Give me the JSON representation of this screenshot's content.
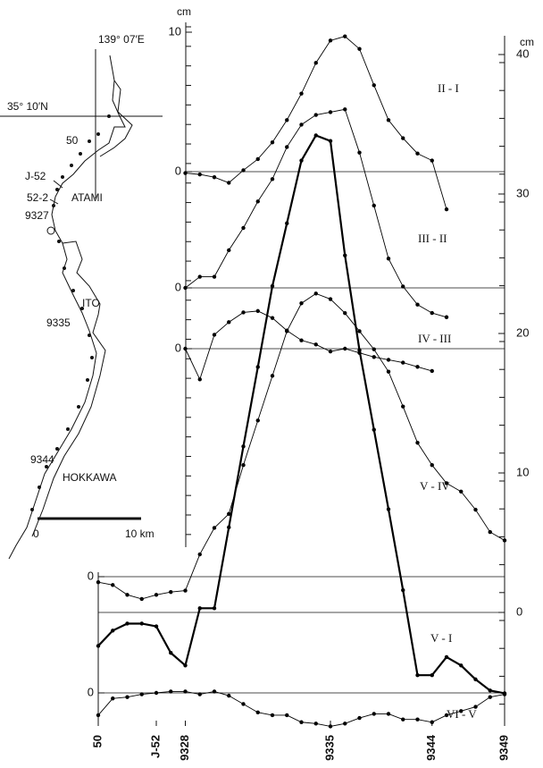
{
  "map": {
    "longitude": "139° 07′E",
    "latitude": "35° 10′N",
    "points": [
      "50",
      "J-52",
      "52-2",
      "9327",
      "9335",
      "9344"
    ],
    "places": [
      "ATAMI",
      "ITO",
      "HOKKAWA"
    ],
    "scale": [
      "0",
      "10 km"
    ]
  },
  "chart_data": {
    "type": "line",
    "y_unit": "cm",
    "y2_unit": "cm",
    "categories": [
      "50",
      null,
      null,
      null,
      "J-52",
      null,
      "9328",
      null,
      null,
      null,
      null,
      null,
      null,
      null,
      null,
      null,
      "9335",
      null,
      null,
      null,
      null,
      null,
      null,
      "9344",
      null,
      null,
      null,
      null,
      "9349"
    ],
    "y2ticks": [
      0,
      10,
      20,
      30,
      40
    ],
    "series": [
      {
        "name": "II - I",
        "color": "#000",
        "yticks": [
          0,
          10
        ],
        "values": [
          null,
          null,
          null,
          null,
          null,
          null,
          -0.1,
          -0.2,
          -0.4,
          -0.8,
          0.1,
          0.9,
          2.1,
          3.7,
          5.6,
          7.8,
          9.4,
          9.7,
          8.8,
          6.2,
          3.7,
          2.4,
          1.3,
          0.8,
          -2.7,
          null,
          null,
          null,
          null
        ]
      },
      {
        "name": "III - II",
        "color": "#000",
        "yticks": [
          0
        ],
        "values": [
          null,
          null,
          null,
          null,
          null,
          null,
          0,
          0.8,
          0.8,
          2.7,
          4.3,
          6.2,
          7.8,
          10.1,
          11.7,
          12.4,
          12.6,
          12.8,
          9.7,
          5.9,
          2.1,
          0.1,
          -1.2,
          -1.8,
          -2.1,
          null,
          null,
          null,
          null
        ]
      },
      {
        "name": "IV - III",
        "color": "#000",
        "yticks": [
          0
        ],
        "values": [
          null,
          null,
          null,
          null,
          null,
          null,
          0,
          -2.2,
          1.0,
          1.9,
          2.6,
          2.7,
          2.2,
          1.3,
          0.6,
          0.3,
          -0.2,
          0,
          -0.3,
          -0.6,
          -0.8,
          -1.0,
          -1.3,
          -1.6,
          null,
          null,
          null,
          null,
          null
        ]
      },
      {
        "name": "V - IV",
        "color": "#000",
        "yticks": [
          0
        ],
        "values": [
          -0.4,
          -0.6,
          -1.3,
          -1.6,
          -1.3,
          -1.1,
          -1.0,
          1.6,
          3.5,
          4.5,
          8.0,
          11.2,
          14.4,
          17.6,
          19.6,
          20.3,
          19.9,
          18.9,
          17.6,
          16.3,
          14.7,
          12.2,
          9.6,
          8.0,
          6.7,
          6.1,
          4.8,
          3.2,
          2.6
        ]
      },
      {
        "name": "V - I",
        "color": "#000",
        "axis": "y2",
        "values": [
          -2.4,
          -1.3,
          -0.8,
          -0.8,
          -1.0,
          -2.9,
          -3.8,
          0.3,
          0.3,
          6.1,
          11.9,
          17.6,
          23.4,
          27.9,
          32.4,
          34.2,
          33.8,
          25.6,
          18.8,
          13.1,
          7.4,
          1.6,
          -4.5,
          -4.5,
          -3.2,
          -3.8,
          -4.8,
          -5.6,
          -5.8
        ]
      },
      {
        "name": "VI - V",
        "color": "#000",
        "yticks": [
          0
        ],
        "values": [
          -1.6,
          -0.4,
          -0.3,
          -0.1,
          0,
          0.1,
          0.1,
          -0.1,
          0.1,
          -0.2,
          -0.8,
          -1.4,
          -1.6,
          -1.6,
          -2.1,
          -2.2,
          -2.4,
          -2.2,
          -1.8,
          -1.5,
          -1.5,
          -1.9,
          -1.9,
          -2.1,
          -1.6,
          -1.3,
          -1.0,
          -0.3,
          -0.1
        ]
      }
    ]
  }
}
